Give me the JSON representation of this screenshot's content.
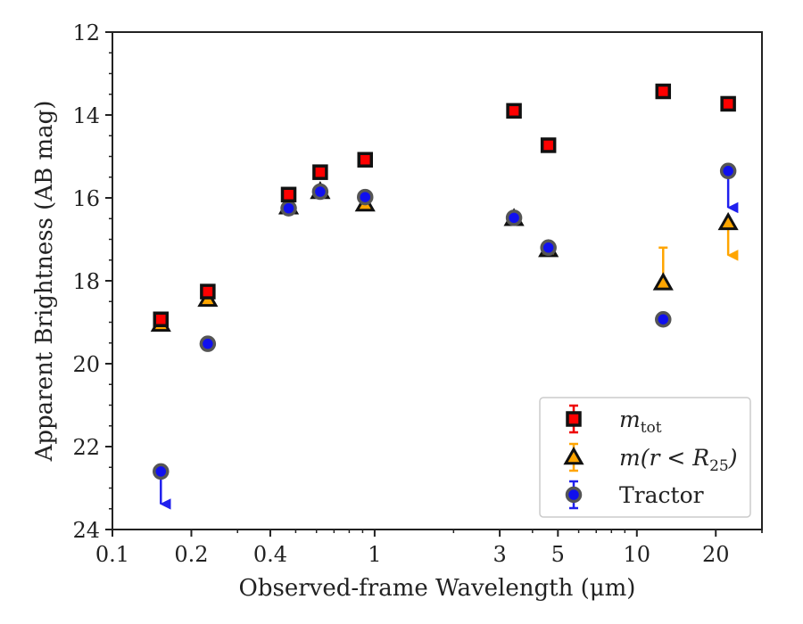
{
  "chart_data": {
    "type": "scatter",
    "title": "",
    "xlabel": "Observed-frame Wavelength (μm)",
    "ylabel": "Apparent Brightness (AB mag)",
    "xscale": "log",
    "xlim": [
      0.1,
      30
    ],
    "ylim": [
      24,
      12
    ],
    "y_inverted": true,
    "x_ticks": [
      0.1,
      0.2,
      0.4,
      1,
      3,
      5,
      10,
      20
    ],
    "x_tick_labels": [
      "0.1",
      "0.2",
      "0.4",
      "1",
      "3",
      "5",
      "10",
      "20"
    ],
    "y_ticks": [
      12,
      14,
      16,
      18,
      20,
      22,
      24
    ],
    "y_tick_labels": [
      "12",
      "14",
      "16",
      "18",
      "20",
      "22",
      "24"
    ],
    "legend_position": "lower-right",
    "series": [
      {
        "name": "m_tot",
        "legend_main": "m",
        "legend_sub": "tot",
        "marker": "square",
        "color": "#ff0000",
        "edge_color": "#111111",
        "points": [
          {
            "x": 0.153,
            "y": 18.93
          },
          {
            "x": 0.231,
            "y": 18.26
          },
          {
            "x": 0.47,
            "y": 15.92
          },
          {
            "x": 0.62,
            "y": 15.38
          },
          {
            "x": 0.92,
            "y": 15.08
          },
          {
            "x": 3.4,
            "y": 13.9
          },
          {
            "x": 4.6,
            "y": 14.73
          },
          {
            "x": 12.6,
            "y": 13.43
          },
          {
            "x": 22.3,
            "y": 13.73
          }
        ]
      },
      {
        "name": "m(r < R_25)",
        "legend_main": "m(r < R",
        "legend_sub": "25",
        "legend_tail": ")",
        "marker": "triangle",
        "color": "#ffa500",
        "edge_color": "#111111",
        "points": [
          {
            "x": 0.153,
            "y": 19.05
          },
          {
            "x": 0.231,
            "y": 18.45
          },
          {
            "x": 0.47,
            "y": 16.22
          },
          {
            "x": 0.62,
            "y": 15.85
          },
          {
            "x": 0.92,
            "y": 16.15
          },
          {
            "x": 3.4,
            "y": 16.5
          },
          {
            "x": 4.6,
            "y": 17.25
          },
          {
            "x": 12.6,
            "y": 18.05,
            "err_minus": 0.85,
            "err_plus": 0
          },
          {
            "x": 22.3,
            "y": 16.6,
            "upper_limit_to": 17.45
          }
        ]
      },
      {
        "name": "Tractor",
        "legend_main": "Tractor",
        "marker": "circle",
        "color": "#1010ee",
        "edge_color": "#555555",
        "points": [
          {
            "x": 0.153,
            "y": 22.6,
            "upper_limit_to": 23.45
          },
          {
            "x": 0.231,
            "y": 19.52
          },
          {
            "x": 0.47,
            "y": 16.25
          },
          {
            "x": 0.62,
            "y": 15.85
          },
          {
            "x": 0.92,
            "y": 15.98
          },
          {
            "x": 3.4,
            "y": 16.48
          },
          {
            "x": 4.6,
            "y": 17.2
          },
          {
            "x": 12.6,
            "y": 18.93
          },
          {
            "x": 22.3,
            "y": 15.35,
            "upper_limit_to": 16.3
          }
        ]
      }
    ]
  }
}
